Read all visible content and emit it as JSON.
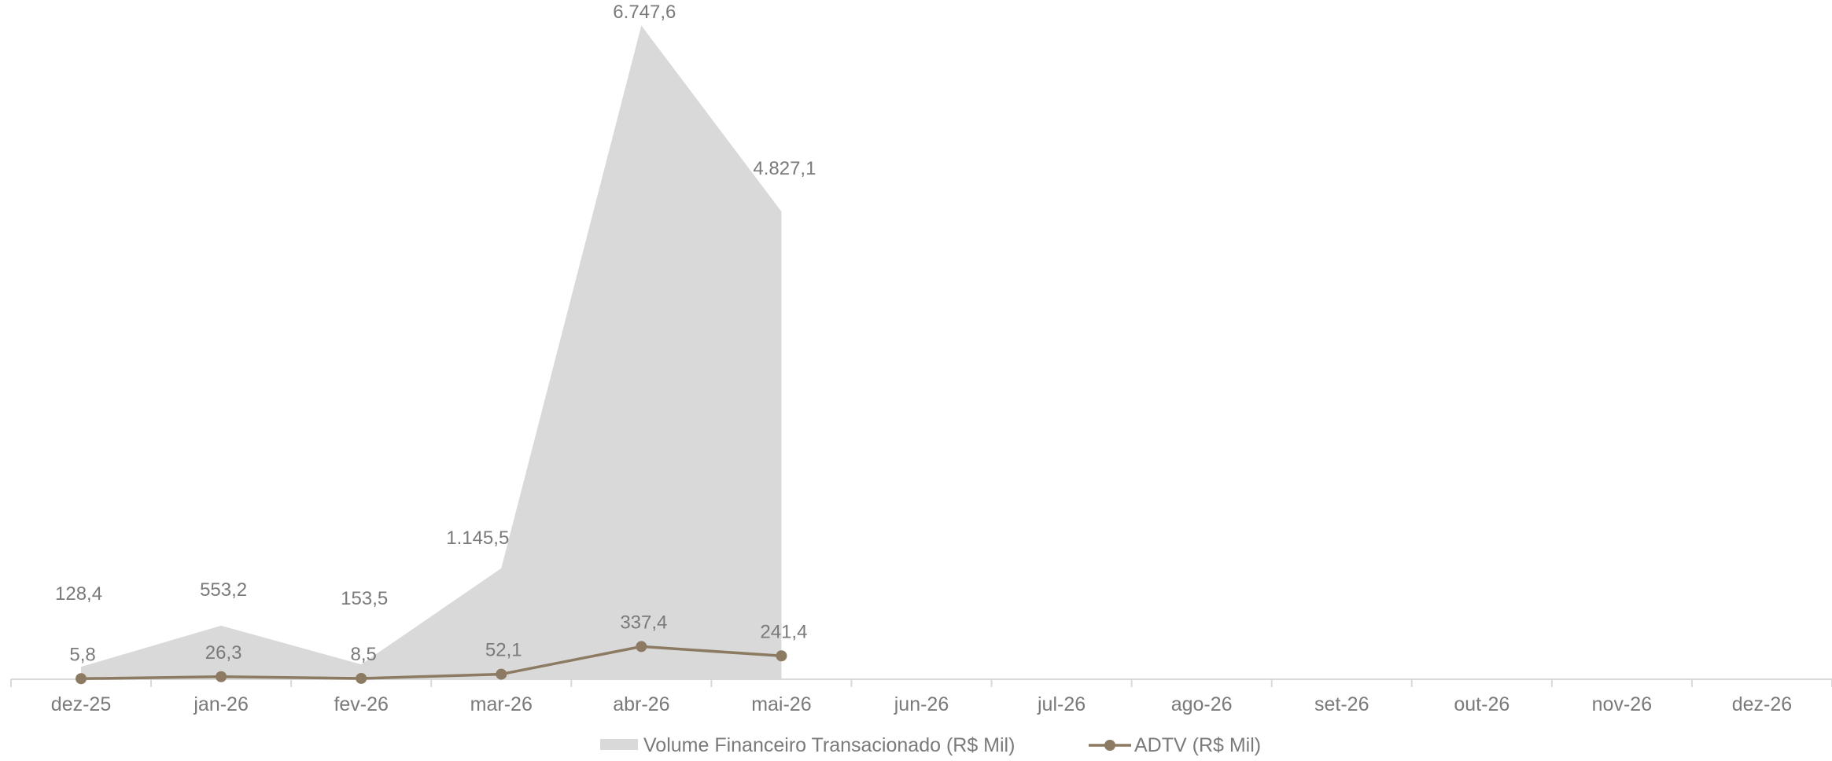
{
  "chart_data": {
    "type": "area",
    "categories": [
      "dez-25",
      "jan-26",
      "fev-26",
      "mar-26",
      "abr-26",
      "mai-26",
      "jun-26",
      "jul-26",
      "ago-26",
      "set-26",
      "out-26",
      "nov-26",
      "dez-26"
    ],
    "series": [
      {
        "name": "Volume Financeiro Transacionado (R$ Mil)",
        "type": "area",
        "values": [
          128.4,
          553.2,
          153.5,
          1145.5,
          6747.6,
          4827.1,
          null,
          null,
          null,
          null,
          null,
          null,
          null
        ],
        "labels": [
          "128,4",
          "553,2",
          "153,5",
          "1.145,5",
          "6.747,6",
          "4.827,1",
          "",
          "",
          "",
          "",
          "",
          "",
          ""
        ],
        "color": "#d9d9d9"
      },
      {
        "name": "ADTV (R$ Mil)",
        "type": "line",
        "values": [
          5.8,
          26.3,
          8.5,
          52.1,
          337.4,
          241.4,
          null,
          null,
          null,
          null,
          null,
          null,
          null
        ],
        "labels": [
          "5,8",
          "26,3",
          "8,5",
          "52,1",
          "337,4",
          "241,4",
          "",
          "",
          "",
          "",
          "",
          "",
          ""
        ],
        "color": "#8c7a62"
      }
    ],
    "ylim": [
      0,
      6800
    ],
    "grid": false,
    "legend_position": "bottom-center",
    "axis_color": "#d9d9d9",
    "text_color": "#7a7a7a"
  }
}
